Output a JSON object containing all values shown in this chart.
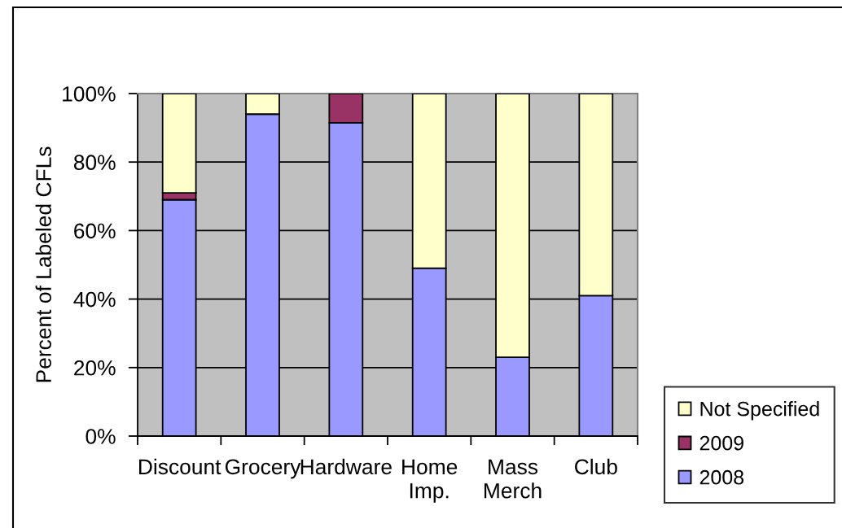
{
  "chart_data": {
    "type": "bar",
    "stacked": true,
    "categories": [
      "Discount",
      "Grocery",
      "Hardware",
      "Home Imp.",
      "Mass Merch",
      "Club"
    ],
    "series": [
      {
        "name": "2008",
        "color": "#9999ff",
        "values": [
          69,
          94,
          91.5,
          49,
          23,
          41
        ]
      },
      {
        "name": "2009",
        "color": "#993366",
        "values": [
          2,
          null,
          8.5,
          null,
          null,
          null
        ]
      },
      {
        "name": "Not Specified",
        "color": "#ffffcc",
        "values": [
          29,
          6,
          null,
          51,
          77,
          59
        ]
      }
    ],
    "ylabel": "Percent of Labeled CFLs",
    "ylim": [
      0,
      100
    ],
    "yticks": [
      {
        "value": 0,
        "label": "0%"
      },
      {
        "value": 20,
        "label": "20%"
      },
      {
        "value": 40,
        "label": "40%"
      },
      {
        "value": 60,
        "label": "60%"
      },
      {
        "value": 80,
        "label": "80%"
      },
      {
        "value": 100,
        "label": "100%"
      }
    ],
    "grid": "y",
    "legend": "right"
  }
}
